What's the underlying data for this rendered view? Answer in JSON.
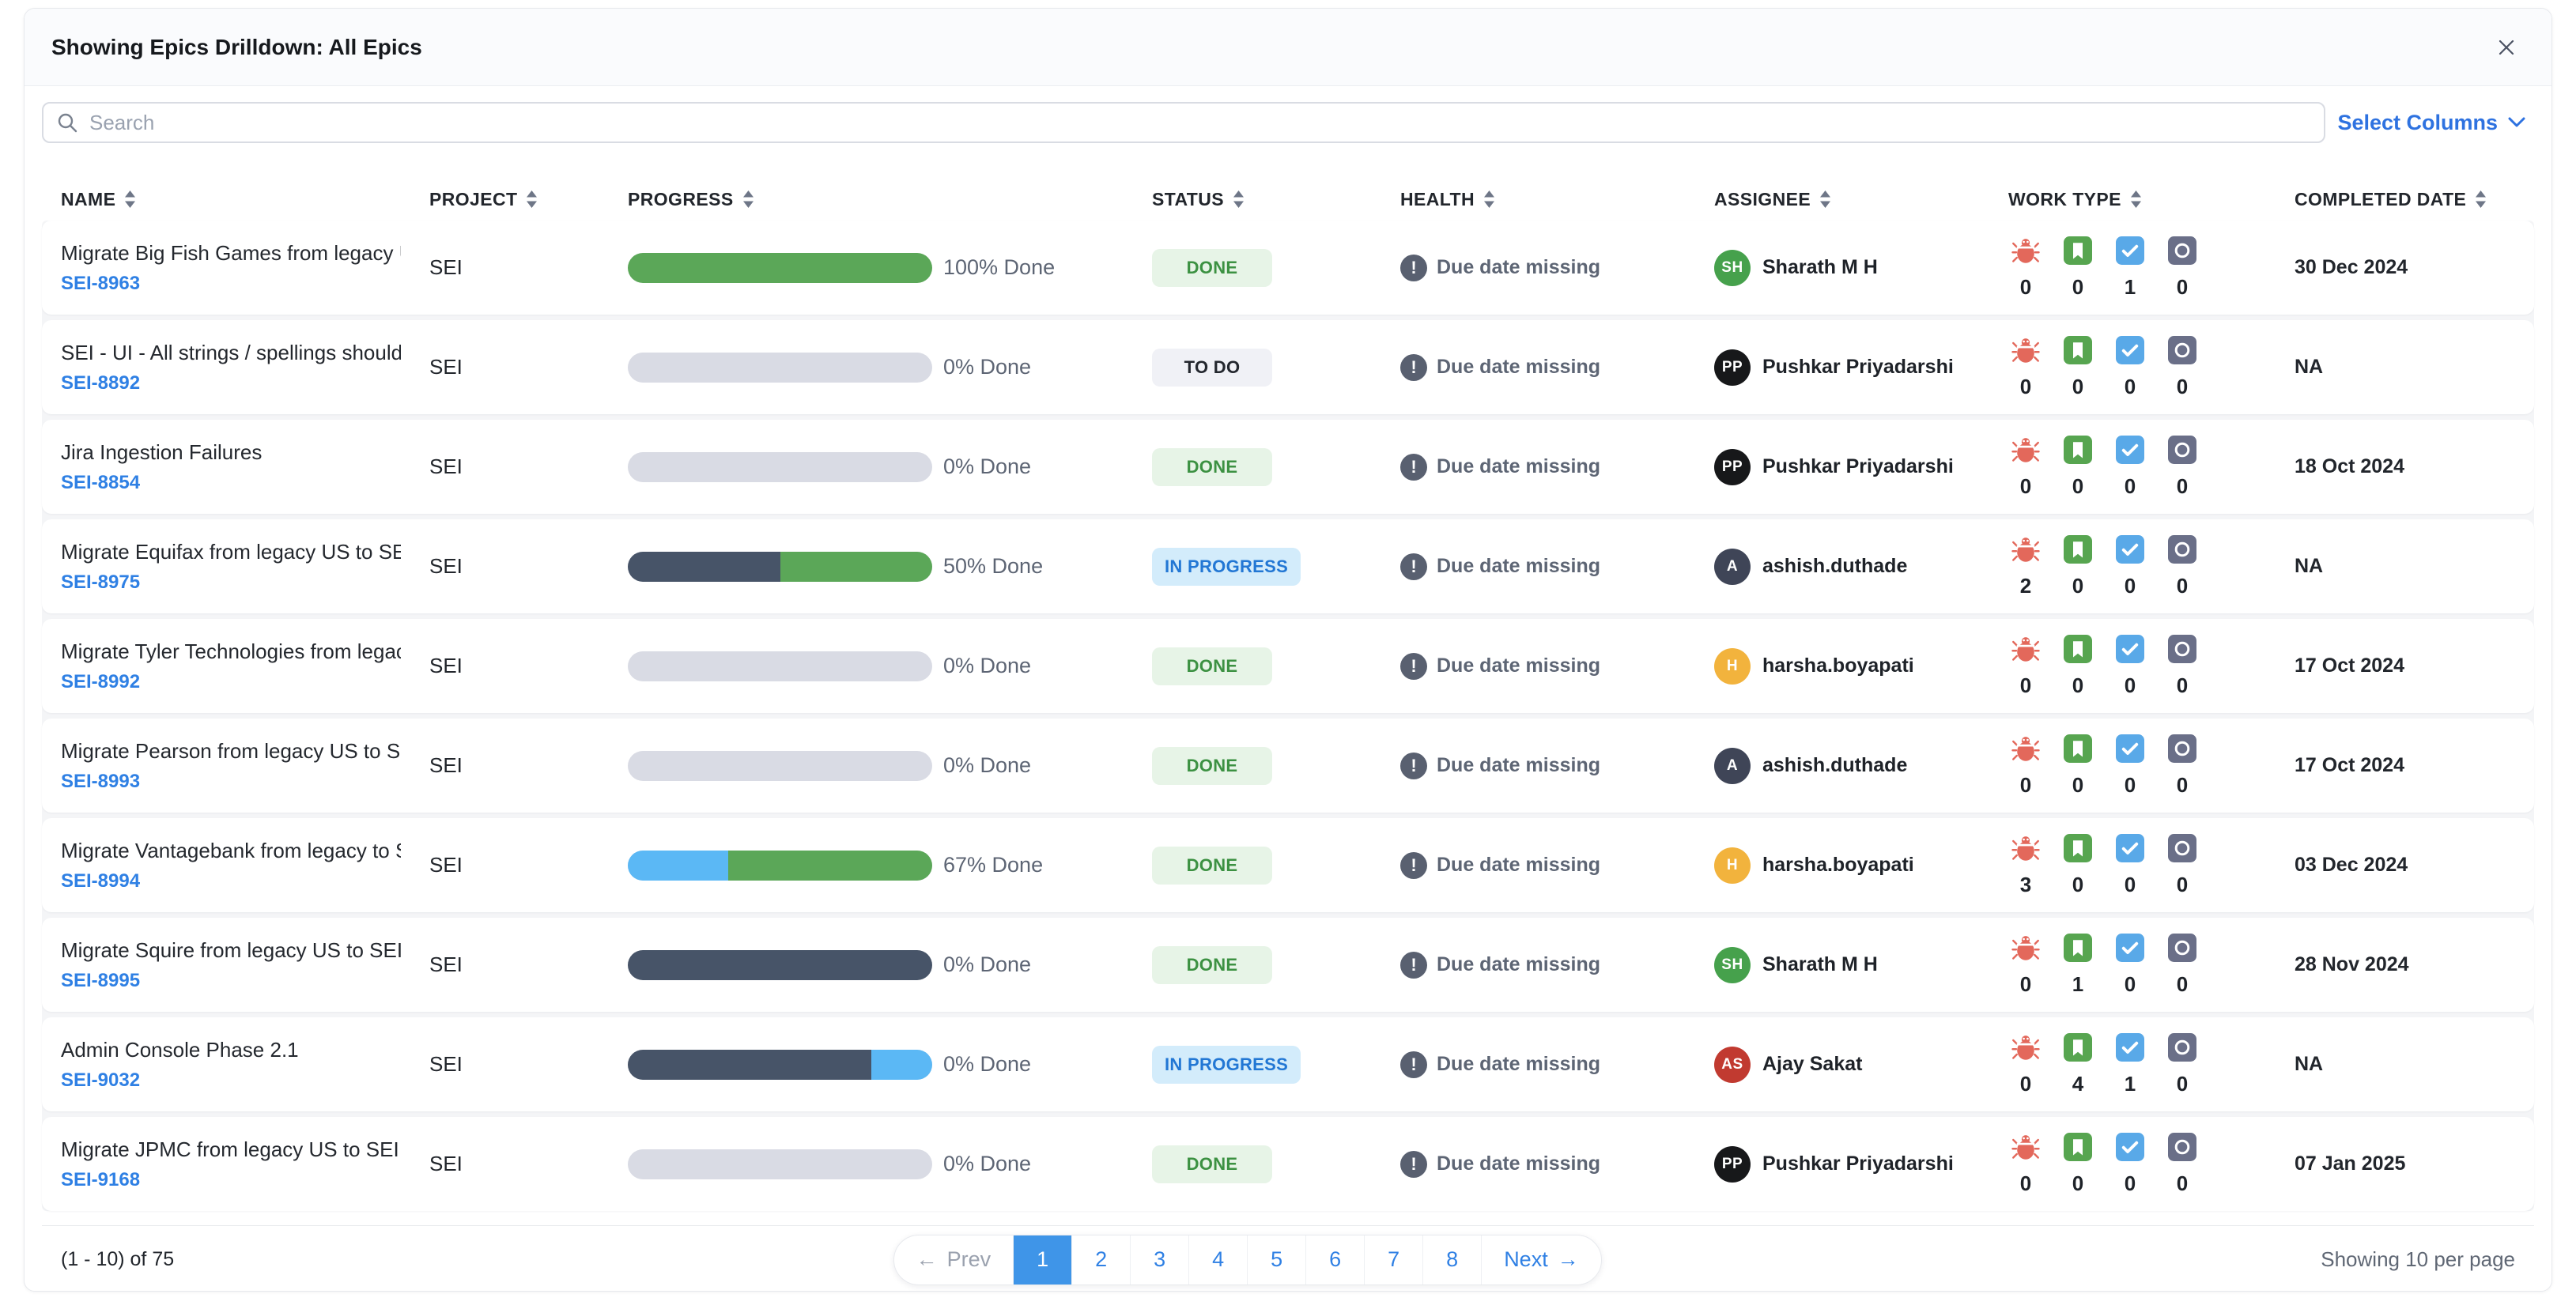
{
  "header": {
    "title": "Showing Epics Drilldown: All Epics"
  },
  "toolbar": {
    "search_placeholder": "Search",
    "select_columns": "Select Columns"
  },
  "icons": {
    "warning": "!",
    "prev_arrow": "←",
    "next_arrow": "→"
  },
  "table": {
    "columns": [
      "NAME",
      "PROJECT",
      "PROGRESS",
      "STATUS",
      "HEALTH",
      "ASSIGNEE",
      "WORK TYPE",
      "COMPLETED DATE"
    ],
    "work_types": [
      "bug",
      "story",
      "task",
      "other"
    ],
    "colors": {
      "progress_track": "#d9dbe4",
      "progress_green": "#5ba758",
      "progress_navy": "#475468",
      "progress_blue": "#5bb8f5"
    },
    "rows": [
      {
        "name": "Migrate Big Fish Games from legacy US to SEI ...",
        "key": "SEI-8963",
        "project": "SEI",
        "progress_label": "100% Done",
        "segments": [
          {
            "color": "green",
            "pct": 100
          }
        ],
        "status": "DONE",
        "health": "Due date missing",
        "assignee": {
          "name": "Sharath M H",
          "initials": "SH",
          "color": "#46a14c"
        },
        "counts": [
          0,
          0,
          1,
          0
        ],
        "completed": "30 Dec 2024"
      },
      {
        "name": "SEI - UI - All strings / spellings should be in A...",
        "key": "SEI-8892",
        "project": "SEI",
        "progress_label": "0% Done",
        "segments": [],
        "status": "TO DO",
        "health": "Due date missing",
        "assignee": {
          "name": "Pushkar Priyadarshi",
          "initials": "PP",
          "color": "#17181a"
        },
        "counts": [
          0,
          0,
          0,
          0
        ],
        "completed": "NA"
      },
      {
        "name": "Jira Ingestion Failures",
        "key": "SEI-8854",
        "project": "SEI",
        "progress_label": "0% Done",
        "segments": [],
        "status": "DONE",
        "health": "Due date missing",
        "assignee": {
          "name": "Pushkar Priyadarshi",
          "initials": "PP",
          "color": "#17181a"
        },
        "counts": [
          0,
          0,
          0,
          0
        ],
        "completed": "18 Oct 2024"
      },
      {
        "name": "Migrate Equifax from legacy US to SEI on Harn...",
        "key": "SEI-8975",
        "project": "SEI",
        "progress_label": "50% Done",
        "segments": [
          {
            "color": "navy",
            "pct": 50
          },
          {
            "color": "green",
            "pct": 50
          }
        ],
        "status": "IN PROGRESS",
        "health": "Due date missing",
        "assignee": {
          "name": "ashish.duthade",
          "initials": "A",
          "color": "#3f4557"
        },
        "counts": [
          2,
          0,
          0,
          0
        ],
        "completed": "NA"
      },
      {
        "name": "Migrate Tyler Technologies from legacy US to ...",
        "key": "SEI-8992",
        "project": "SEI",
        "progress_label": "0% Done",
        "segments": [],
        "status": "DONE",
        "health": "Due date missing",
        "assignee": {
          "name": "harsha.boyapati",
          "initials": "H",
          "color": "#f2b33d"
        },
        "counts": [
          0,
          0,
          0,
          0
        ],
        "completed": "17 Oct 2024"
      },
      {
        "name": "Migrate Pearson from legacy US to SEI on Har...",
        "key": "SEI-8993",
        "project": "SEI",
        "progress_label": "0% Done",
        "segments": [],
        "status": "DONE",
        "health": "Due date missing",
        "assignee": {
          "name": "ashish.duthade",
          "initials": "A",
          "color": "#3f4557"
        },
        "counts": [
          0,
          0,
          0,
          0
        ],
        "completed": "17 Oct 2024"
      },
      {
        "name": "Migrate Vantagebank from legacy to SEI on Ha...",
        "key": "SEI-8994",
        "project": "SEI",
        "progress_label": "67% Done",
        "segments": [
          {
            "color": "blue",
            "pct": 33
          },
          {
            "color": "green",
            "pct": 67
          }
        ],
        "status": "DONE",
        "health": "Due date missing",
        "assignee": {
          "name": "harsha.boyapati",
          "initials": "H",
          "color": "#f2b33d"
        },
        "counts": [
          3,
          0,
          0,
          0
        ],
        "completed": "03 Dec 2024"
      },
      {
        "name": "Migrate Squire from legacy US to SEI on Harne...",
        "key": "SEI-8995",
        "project": "SEI",
        "progress_label": "0% Done",
        "segments": [
          {
            "color": "navy",
            "pct": 100
          }
        ],
        "status": "DONE",
        "health": "Due date missing",
        "assignee": {
          "name": "Sharath M H",
          "initials": "SH",
          "color": "#46a14c"
        },
        "counts": [
          0,
          1,
          0,
          0
        ],
        "completed": "28 Nov 2024"
      },
      {
        "name": "Admin Console Phase 2.1",
        "key": "SEI-9032",
        "project": "SEI",
        "progress_label": "0% Done",
        "segments": [
          {
            "color": "navy",
            "pct": 80
          },
          {
            "color": "blue",
            "pct": 20
          }
        ],
        "status": "IN PROGRESS",
        "health": "Due date missing",
        "assignee": {
          "name": "Ajay Sakat",
          "initials": "AS",
          "color": "#c13a30"
        },
        "counts": [
          0,
          4,
          1,
          0
        ],
        "completed": "NA"
      },
      {
        "name": "Migrate JPMC from legacy US to SEI on Harne...",
        "key": "SEI-9168",
        "project": "SEI",
        "progress_label": "0% Done",
        "segments": [],
        "status": "DONE",
        "health": "Due date missing",
        "assignee": {
          "name": "Pushkar Priyadarshi",
          "initials": "PP",
          "color": "#17181a"
        },
        "counts": [
          0,
          0,
          0,
          0
        ],
        "completed": "07 Jan 2025"
      }
    ]
  },
  "footer": {
    "range": "(1 - 10) of 75",
    "prev_label": "Prev",
    "pages": [
      "1",
      "2",
      "3",
      "4",
      "5",
      "6",
      "7",
      "8"
    ],
    "active_page": "1",
    "next_label": "Next",
    "per_page": "Showing 10 per page"
  }
}
